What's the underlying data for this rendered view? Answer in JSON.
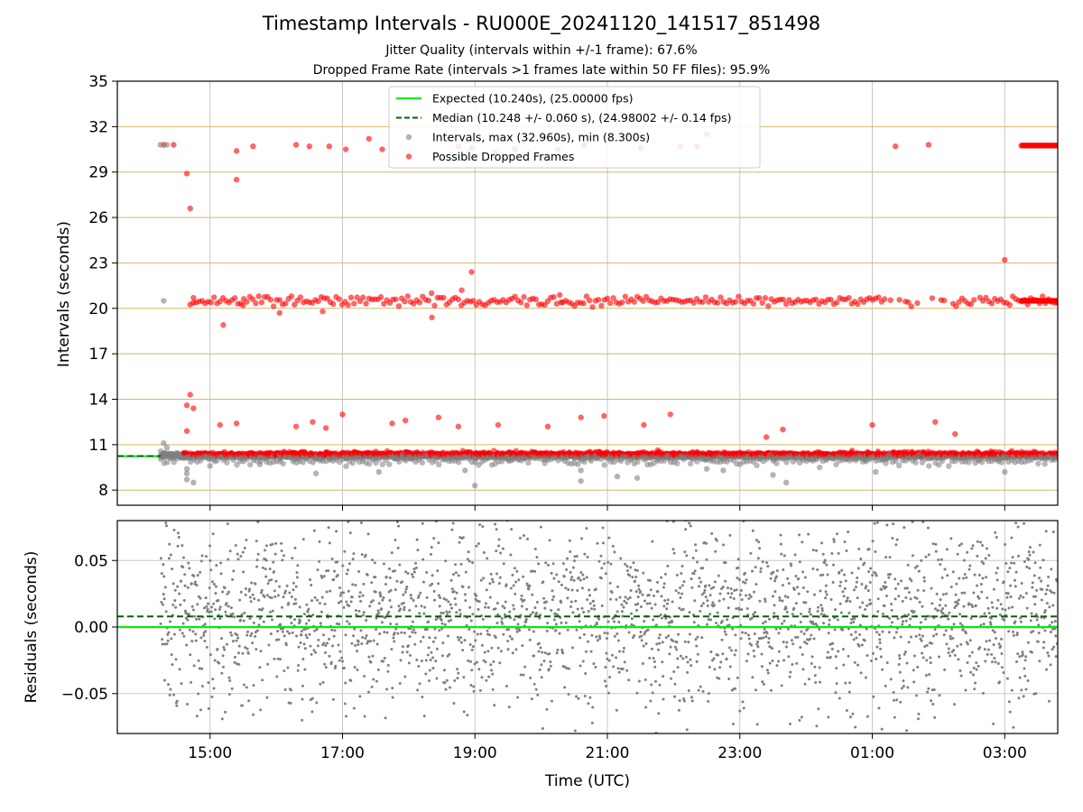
{
  "title": "Timestamp Intervals - RU000E_20241120_141517_851498",
  "subtitle_1": "Jitter Quality (intervals within +/-1 frame): 67.6%",
  "subtitle_2": "Dropped Frame Rate (intervals >1 frames late within 50 FF files): 95.9%",
  "colors": {
    "expected": "#00ee00",
    "median": "#006400",
    "intervals": "#808080",
    "dropped": "#ff0000",
    "hgrid_top": "#d4b96a",
    "grid": "#c8c8c8"
  },
  "chart_data": [
    {
      "type": "scatter",
      "panel": "top",
      "ylabel": "Intervals (seconds)",
      "ylim": [
        7,
        35
      ],
      "yticks": [
        "8",
        "11",
        "14",
        "17",
        "20",
        "23",
        "26",
        "29",
        "32",
        "35"
      ],
      "ytick_values": [
        8,
        11,
        14,
        17,
        20,
        23,
        26,
        29,
        32,
        35
      ],
      "xlim_hours": [
        13.6,
        27.8
      ],
      "x_start_hour": 14.255,
      "x_end_hour": 27.8,
      "grid": "on",
      "legend_placement": "upper-center",
      "legend": {
        "expected": "Expected (10.240s), (25.00000 fps)",
        "median": "Median (10.248 +/- 0.060 s), (24.98002 +/- 0.14 fps)",
        "intervals": "Intervals, max (32.960s), min (8.300s)",
        "dropped": "Possible Dropped Frames"
      },
      "expected_interval": 10.24,
      "median_interval": 10.248,
      "max_interval": 32.96,
      "min_interval": 8.3,
      "series": [
        {
          "name": "Possible Dropped Frames",
          "points_hour_value": [
            [
              14.3,
              30.8
            ],
            [
              14.45,
              30.8
            ],
            [
              14.65,
              28.9
            ],
            [
              14.7,
              26.6
            ],
            [
              15.4,
              30.4
            ],
            [
              15.4,
              28.5
            ],
            [
              15.65,
              30.7
            ],
            [
              16.3,
              30.8
            ],
            [
              16.5,
              30.7
            ],
            [
              16.8,
              30.7
            ],
            [
              17.05,
              30.5
            ],
            [
              17.4,
              31.2
            ],
            [
              17.6,
              30.5
            ],
            [
              18.75,
              30.7
            ],
            [
              18.95,
              30.6
            ],
            [
              19.3,
              30.3
            ],
            [
              19.6,
              30.5
            ],
            [
              20.25,
              30.5
            ],
            [
              20.65,
              30.8
            ],
            [
              21.3,
              31.5
            ],
            [
              21.5,
              30.6
            ],
            [
              22.1,
              30.7
            ],
            [
              22.35,
              30.7
            ],
            [
              22.5,
              31.5
            ],
            [
              25.35,
              30.7
            ],
            [
              25.85,
              30.8
            ],
            [
              14.75,
              20.7
            ],
            [
              15.2,
              18.9
            ],
            [
              15.5,
              20.2
            ],
            [
              16.05,
              19.7
            ],
            [
              16.7,
              19.8
            ],
            [
              18.35,
              19.4
            ],
            [
              18.95,
              22.4
            ],
            [
              18.8,
              21.2
            ],
            [
              20.3,
              20.4
            ],
            [
              27.0,
              23.2
            ],
            [
              14.7,
              14.3
            ],
            [
              14.65,
              13.6
            ],
            [
              14.75,
              13.4
            ],
            [
              14.65,
              11.9
            ],
            [
              15.15,
              12.3
            ],
            [
              15.4,
              12.4
            ],
            [
              16.3,
              12.2
            ],
            [
              16.55,
              12.5
            ],
            [
              16.75,
              12.1
            ],
            [
              17.0,
              13.0
            ],
            [
              17.75,
              12.4
            ],
            [
              17.95,
              12.6
            ],
            [
              18.45,
              12.8
            ],
            [
              18.75,
              12.2
            ],
            [
              19.35,
              12.3
            ],
            [
              20.1,
              12.2
            ],
            [
              20.6,
              12.8
            ],
            [
              20.95,
              12.9
            ],
            [
              21.55,
              12.3
            ],
            [
              21.95,
              13.0
            ],
            [
              23.4,
              11.5
            ],
            [
              23.65,
              12.0
            ],
            [
              25.0,
              12.3
            ],
            [
              25.95,
              12.5
            ],
            [
              26.25,
              11.7
            ]
          ]
        },
        {
          "name": "Intervals, max (32.960s), min (8.300s)",
          "points_hour_value": [
            [
              14.25,
              30.8
            ],
            [
              14.35,
              30.8
            ],
            [
              14.3,
              20.5
            ],
            [
              14.3,
              11.1
            ],
            [
              14.35,
              10.8
            ],
            [
              14.65,
              9.1
            ],
            [
              14.65,
              9.4
            ],
            [
              14.65,
              8.7
            ],
            [
              14.75,
              8.5
            ],
            [
              15.0,
              9.6
            ],
            [
              15.75,
              9.7
            ],
            [
              16.6,
              9.1
            ],
            [
              17.55,
              9.2
            ],
            [
              18.85,
              9.3
            ],
            [
              19.0,
              8.3
            ],
            [
              20.6,
              8.6
            ],
            [
              20.6,
              9.3
            ],
            [
              21.15,
              8.9
            ],
            [
              21.45,
              8.8
            ],
            [
              22.5,
              9.4
            ],
            [
              22.75,
              9.3
            ],
            [
              23.5,
              9.0
            ],
            [
              23.7,
              8.5
            ],
            [
              25.05,
              9.2
            ],
            [
              27.0,
              9.2
            ]
          ]
        }
      ],
      "bands": [
        {
          "name": "interval-band",
          "center": 10.3,
          "spread": 0.28
        },
        {
          "name": "dropped-20s-band",
          "center": 20.5,
          "spread": 0.35
        }
      ]
    },
    {
      "type": "scatter",
      "panel": "bottom",
      "xlabel": "Time (UTC)",
      "ylabel": "Residuals (seconds)",
      "ylim": [
        -0.08,
        0.08
      ],
      "yticks": [
        "0.05",
        "0.00",
        "−0.05"
      ],
      "ytick_values": [
        0.05,
        0.0,
        -0.05
      ],
      "xticks": [
        "15:00",
        "17:00",
        "19:00",
        "21:00",
        "23:00",
        "01:00",
        "03:00"
      ],
      "xtick_hours": [
        15,
        17,
        19,
        21,
        23,
        25,
        27
      ],
      "expected_residual": 0.0,
      "median_residual": 0.008,
      "residual_sigma": 0.035,
      "grid": "on"
    }
  ]
}
